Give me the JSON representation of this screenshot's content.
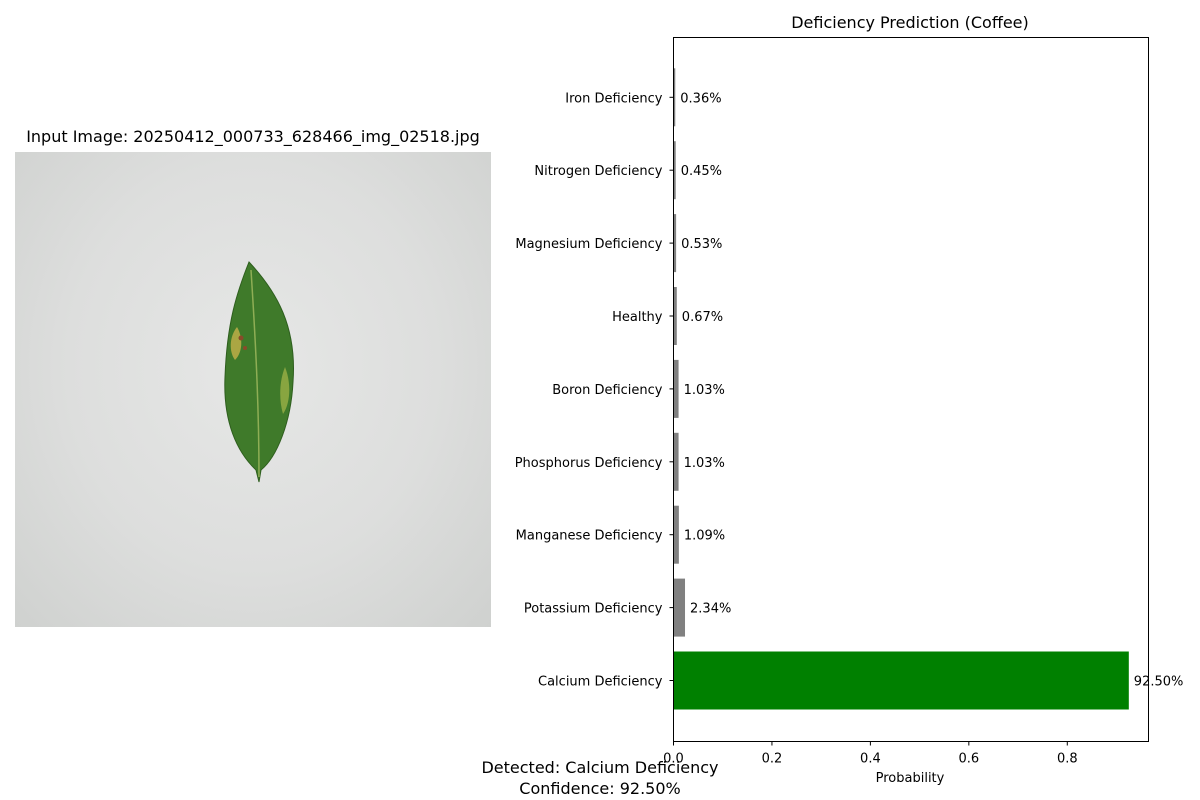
{
  "image_panel": {
    "title": "Input Image: 20250412_000733_628466_img_02518.jpg"
  },
  "chart_data": {
    "type": "bar",
    "orientation": "horizontal",
    "title": "Deficiency Prediction (Coffee)",
    "xlabel": "Probability",
    "ylabel": "",
    "xlim": [
      0,
      0.965
    ],
    "xticks": [
      "0.0",
      "0.2",
      "0.4",
      "0.6",
      "0.8"
    ],
    "xtick_values": [
      0,
      0.2,
      0.4,
      0.6,
      0.8
    ],
    "grid": false,
    "categories": [
      "Calcium Deficiency",
      "Potassium Deficiency",
      "Manganese Deficiency",
      "Phosphorus Deficiency",
      "Boron Deficiency",
      "Healthy",
      "Magnesium Deficiency",
      "Nitrogen Deficiency",
      "Iron Deficiency"
    ],
    "values": [
      0.925,
      0.0234,
      0.0109,
      0.0103,
      0.0103,
      0.0067,
      0.0053,
      0.0045,
      0.0036
    ],
    "value_labels": [
      "92.50%",
      "2.34%",
      "1.09%",
      "1.03%",
      "1.03%",
      "0.67%",
      "0.53%",
      "0.45%",
      "0.36%"
    ],
    "colors": [
      "#008000",
      "#808080",
      "#808080",
      "#808080",
      "#808080",
      "#808080",
      "#808080",
      "#808080",
      "#808080"
    ]
  },
  "summary": {
    "detected": "Detected: Calcium Deficiency",
    "confidence": "Confidence: 92.50%"
  }
}
